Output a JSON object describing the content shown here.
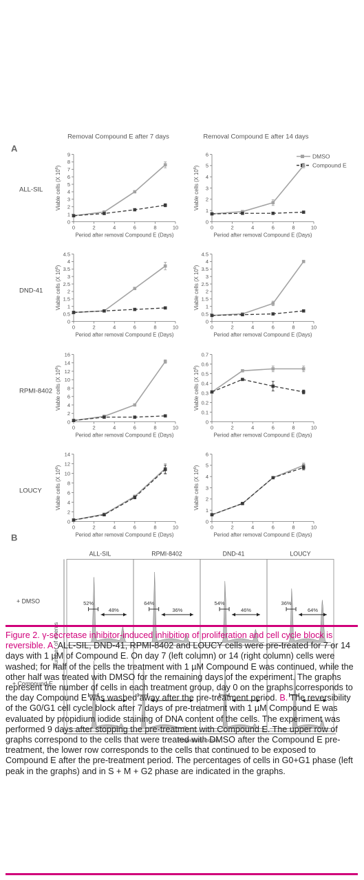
{
  "panel_labels": {
    "a": "A",
    "b": "B"
  },
  "column_titles": [
    "Removal Compound E after 7 days",
    "Removal Compound E after 14 days"
  ],
  "row_labels": [
    "ALL-SIL",
    "DND-41",
    "RPMI-8402",
    "LOUCY"
  ],
  "legend": {
    "dmso": "DMSO",
    "compound": "Compound E"
  },
  "xlabel": "Period after removal Compound E (Days)",
  "ylabel": "Viable cells (X 10",
  "ylabel_sup": "6",
  "ylabel_end": ")",
  "colors": {
    "dmso": "#a3a3a3",
    "compound": "#3a3a3a",
    "accent": "#d0007a",
    "fill": "#bdbdbd"
  },
  "chart_data": [
    {
      "type": "line",
      "row": "ALL-SIL",
      "col": "7 days",
      "ylim": [
        0,
        9
      ],
      "yticks": [
        0,
        1,
        2,
        3,
        4,
        5,
        6,
        7,
        8,
        9
      ],
      "xlim": [
        0,
        10
      ],
      "xticks": [
        0,
        2,
        4,
        6,
        8,
        10
      ],
      "x": [
        0,
        3,
        6,
        9
      ],
      "series": [
        {
          "name": "DMSO",
          "values": [
            0.8,
            1.3,
            4.0,
            7.6
          ],
          "err": [
            0,
            0,
            0.1,
            0.4
          ]
        },
        {
          "name": "Compound E",
          "values": [
            0.8,
            1.1,
            1.6,
            2.2
          ],
          "err": [
            0,
            0,
            0.05,
            0.2
          ]
        }
      ]
    },
    {
      "type": "line",
      "row": "ALL-SIL",
      "col": "14 days",
      "ylim": [
        0,
        6
      ],
      "yticks": [
        0,
        1,
        2,
        3,
        4,
        5,
        6
      ],
      "xlim": [
        0,
        10
      ],
      "xticks": [
        0,
        2,
        4,
        6,
        8,
        10
      ],
      "x": [
        0,
        3,
        6,
        9
      ],
      "series": [
        {
          "name": "DMSO",
          "values": [
            0.7,
            0.9,
            1.7,
            5.0
          ],
          "err": [
            0,
            0,
            0.25,
            0.2
          ]
        },
        {
          "name": "Compound E",
          "values": [
            0.7,
            0.75,
            0.75,
            0.85
          ],
          "err": [
            0,
            0,
            0.05,
            0.05
          ]
        }
      ]
    },
    {
      "type": "line",
      "row": "DND-41",
      "col": "7 days",
      "ylim": [
        0,
        4.5
      ],
      "yticks": [
        0,
        0.5,
        1,
        1.5,
        2,
        2.5,
        3,
        3.5,
        4,
        4.5
      ],
      "xlim": [
        0,
        10
      ],
      "xticks": [
        0,
        2,
        4,
        6,
        8,
        10
      ],
      "x": [
        0,
        3,
        6,
        9
      ],
      "series": [
        {
          "name": "DMSO",
          "values": [
            0.6,
            0.7,
            2.2,
            3.7
          ],
          "err": [
            0,
            0,
            0.05,
            0.25
          ]
        },
        {
          "name": "Compound E",
          "values": [
            0.6,
            0.7,
            0.8,
            0.9
          ],
          "err": [
            0,
            0,
            0.03,
            0.05
          ]
        }
      ]
    },
    {
      "type": "line",
      "row": "DND-41",
      "col": "14 days",
      "ylim": [
        0,
        4.5
      ],
      "yticks": [
        0,
        0.5,
        1,
        1.5,
        2,
        2.5,
        3,
        3.5,
        4,
        4.5
      ],
      "xlim": [
        0,
        10
      ],
      "xticks": [
        0,
        2,
        4,
        6,
        8,
        10
      ],
      "x": [
        0,
        3,
        6,
        9
      ],
      "series": [
        {
          "name": "DMSO",
          "values": [
            0.4,
            0.5,
            1.2,
            4.0
          ],
          "err": [
            0,
            0,
            0.15,
            0.05
          ]
        },
        {
          "name": "Compound E",
          "values": [
            0.4,
            0.45,
            0.5,
            0.7
          ],
          "err": [
            0,
            0,
            0.03,
            0.05
          ]
        }
      ]
    },
    {
      "type": "line",
      "row": "RPMI-8402",
      "col": "7 days",
      "ylim": [
        0,
        16
      ],
      "yticks": [
        0,
        2,
        4,
        6,
        8,
        10,
        12,
        14,
        16
      ],
      "xlim": [
        0,
        10
      ],
      "xticks": [
        0,
        2,
        4,
        6,
        8,
        10
      ],
      "x": [
        0,
        3,
        6,
        9
      ],
      "series": [
        {
          "name": "DMSO",
          "values": [
            0.3,
            1.3,
            4.0,
            14.3
          ],
          "err": [
            0,
            0,
            0.1,
            0.4
          ]
        },
        {
          "name": "Compound E",
          "values": [
            0.3,
            1.1,
            1.1,
            1.4
          ],
          "err": [
            0,
            0,
            0.05,
            0.05
          ]
        }
      ]
    },
    {
      "type": "line",
      "row": "RPMI-8402",
      "col": "14 days",
      "ylim": [
        0,
        0.7
      ],
      "yticks": [
        0,
        0.1,
        0.2,
        0.3,
        0.4,
        0.5,
        0.6,
        0.7
      ],
      "xlim": [
        0,
        10
      ],
      "xticks": [
        0,
        2,
        4,
        6,
        8,
        10
      ],
      "x": [
        0,
        3,
        6,
        9
      ],
      "series": [
        {
          "name": "DMSO",
          "values": [
            0.31,
            0.53,
            0.55,
            0.55
          ],
          "err": [
            0,
            0.01,
            0.03,
            0.03
          ]
        },
        {
          "name": "Compound E",
          "values": [
            0.31,
            0.44,
            0.37,
            0.31
          ],
          "err": [
            0,
            0.01,
            0.05,
            0.02
          ]
        }
      ]
    },
    {
      "type": "line",
      "row": "LOUCY",
      "col": "7 days",
      "ylim": [
        0,
        14
      ],
      "yticks": [
        0,
        2,
        4,
        6,
        8,
        10,
        12,
        14
      ],
      "xlim": [
        0,
        10
      ],
      "xticks": [
        0,
        2,
        4,
        6,
        8,
        10
      ],
      "x": [
        0,
        3,
        6,
        9
      ],
      "series": [
        {
          "name": "DMSO",
          "values": [
            0.3,
            1.5,
            5.2,
            11.0
          ],
          "err": [
            0,
            0.1,
            0.3,
            1.0
          ]
        },
        {
          "name": "Compound E",
          "values": [
            0.3,
            1.4,
            5.0,
            10.8
          ],
          "err": [
            0,
            0.1,
            0.3,
            0.9
          ]
        }
      ]
    },
    {
      "type": "line",
      "row": "LOUCY",
      "col": "14 days",
      "ylim": [
        0,
        6
      ],
      "yticks": [
        0,
        1,
        2,
        3,
        4,
        5,
        6
      ],
      "xlim": [
        0,
        10
      ],
      "xticks": [
        0,
        2,
        4,
        6,
        8,
        10
      ],
      "x": [
        0,
        3,
        6,
        9
      ],
      "series": [
        {
          "name": "DMSO",
          "values": [
            0.6,
            1.6,
            3.9,
            5.0
          ],
          "err": [
            0,
            0.05,
            0.05,
            0.2
          ]
        },
        {
          "name": "Compound E",
          "values": [
            0.6,
            1.6,
            3.9,
            4.8
          ],
          "err": [
            0,
            0.05,
            0.05,
            0.2
          ]
        }
      ]
    }
  ],
  "histograms": {
    "column_titles": [
      "ALL-SIL",
      "RPMI-8402",
      "DND-41",
      "LOUCY"
    ],
    "row_labels": [
      "+ DMSO",
      "+ Compound E"
    ],
    "row_label_extra": "-",
    "y_axis": "Number of events",
    "x_axis": "Propidium iodide",
    "g1_percent": [
      "52%",
      "64%",
      "54%",
      "36%"
    ],
    "sg2m_percent": [
      "48%",
      "36%",
      "46%",
      "64%"
    ]
  },
  "caption": {
    "lead": "Figure 2. γ-secretase inhibitor-induced inhibition of proliferation and cell cycle block is reversible.",
    "a_tag": "A.",
    "a_text": "ALL-SIL, DND-41, RPMI-8402 and LOUCY cells were pre-treated for 7 or 14 days with 1 µM of Compound E. On day 7 (left column) or 14 (right column) cells were washed; for half of the cells the treatment with 1 µM Compound E was continued, while the other half was treated with DMSO for the remaining days of the experiment. The graphs represent the number of cells in each treatment group, day 0 on the graphs corresponds to the day Compound E was washed away after the pre-treatment period.",
    "b_tag": "B.",
    "b_text": "The reversibility of the G0/G1 cell cycle block after 7 days of pre-treatment with 1 µM Compound E was evaluated by propidium iodide staining of DNA content of the cells. The experiment was performed 9 days after stopping the pre-treatment with Compound E. The upper row of graphs correspond to the cells that were treated with DMSO after the Compound E pre-treatment, the lower row corresponds to the cells that continued to be exposed to Compound E after the pre-treatment period. The percentages of cells in G0+G1 phase (left peak in the graphs) and in S + M + G2 phase are indicated in the graphs."
  }
}
